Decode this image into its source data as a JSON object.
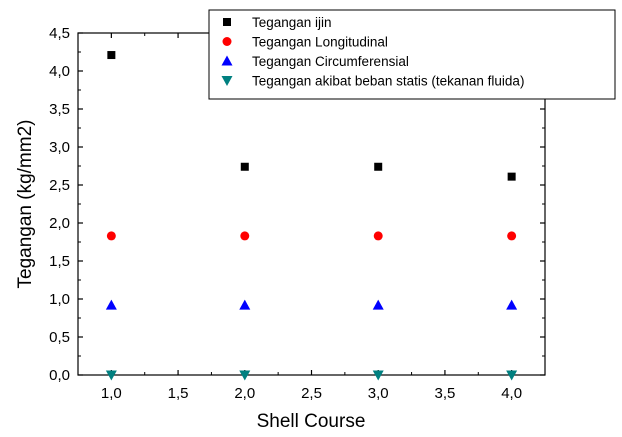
{
  "chart_data": {
    "type": "scatter",
    "title": "",
    "xlabel": "Shell Course",
    "ylabel": "Tegangan (kg/mm2)",
    "xlim": [
      0.75,
      4.25
    ],
    "ylim": [
      0,
      4.5
    ],
    "x_ticks": [
      "1,0",
      "1,5",
      "2,0",
      "2,5",
      "3,0",
      "3,5",
      "4,0"
    ],
    "y_ticks": [
      "0,0",
      "0,5",
      "1,0",
      "1,5",
      "2,0",
      "2,5",
      "3,0",
      "3,5",
      "4,0",
      "4,5"
    ],
    "grid": false,
    "legend_position": "top-right",
    "series": [
      {
        "name": "Tegangan ijin",
        "marker": "square",
        "color": "#000000",
        "x": [
          1,
          2,
          3,
          4
        ],
        "values": [
          4.21,
          2.74,
          2.74,
          2.61
        ]
      },
      {
        "name": "Tegangan Longitudinal",
        "marker": "circle",
        "color": "#ff0000",
        "x": [
          1,
          2,
          3,
          4
        ],
        "values": [
          1.83,
          1.83,
          1.83,
          1.83
        ]
      },
      {
        "name": "Tegangan Circumferensial",
        "marker": "triangle-up",
        "color": "#0000ff",
        "x": [
          1,
          2,
          3,
          4
        ],
        "values": [
          0.92,
          0.92,
          0.92,
          0.92
        ]
      },
      {
        "name": "Tegangan akibat beban statis (tekanan fluida)",
        "marker": "triangle-down",
        "color": "#008080",
        "x": [
          1,
          2,
          3,
          4
        ],
        "values": [
          0,
          0,
          0,
          0
        ]
      }
    ]
  }
}
